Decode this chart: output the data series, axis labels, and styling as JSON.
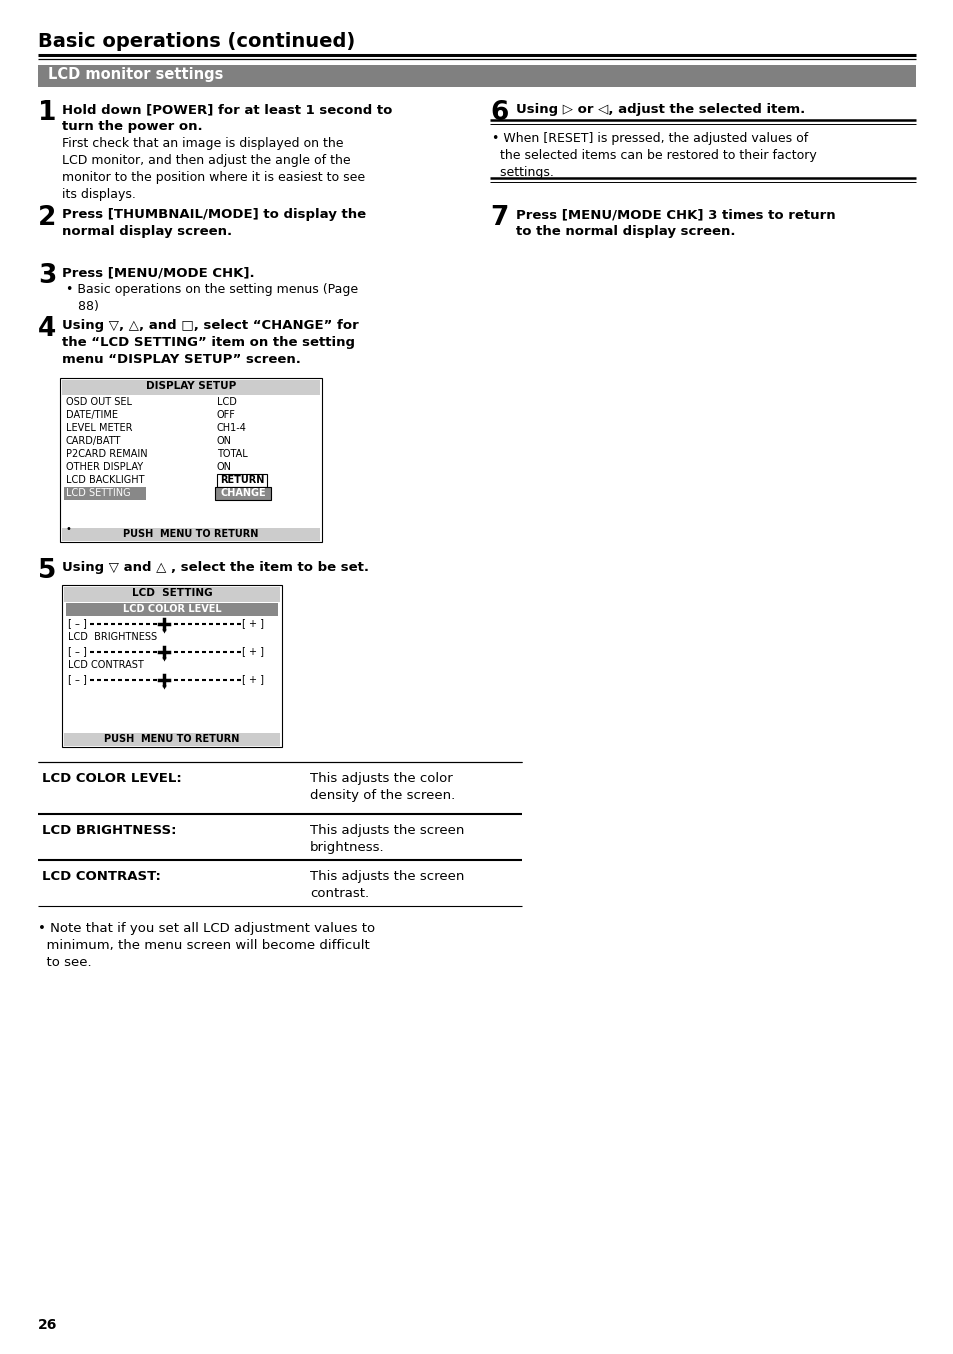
{
  "page_bg": "#ffffff",
  "title": "Basic operations (continued)",
  "section_header": "LCD monitor settings",
  "section_header_bg": "#808080",
  "section_header_color": "#ffffff",
  "display_setup_rows": [
    [
      "OSD OUT SEL",
      "LCD"
    ],
    [
      "DATE/TIME",
      "OFF"
    ],
    [
      "LEVEL METER",
      "CH1-4"
    ],
    [
      "CARD/BATT",
      "ON"
    ],
    [
      "P2CARD REMAIN",
      "TOTAL"
    ],
    [
      "OTHER DISPLAY",
      "ON"
    ],
    [
      "LCD BACKLIGHT",
      "RETURN"
    ],
    [
      "LCD SETTING",
      "CHANGE"
    ]
  ],
  "table_rows": [
    [
      "LCD COLOR LEVEL:",
      "This adjusts the color\ndensity of the screen."
    ],
    [
      "LCD BRIGHTNESS:",
      "This adjusts the screen\nbrightness."
    ],
    [
      "LCD CONTRAST:",
      "This adjusts the screen\ncontrast."
    ]
  ],
  "footer_note": "Note that if you set all LCD adjustment values to\nminimum, the menu screen will become difficult\nto see.",
  "page_number": "26"
}
